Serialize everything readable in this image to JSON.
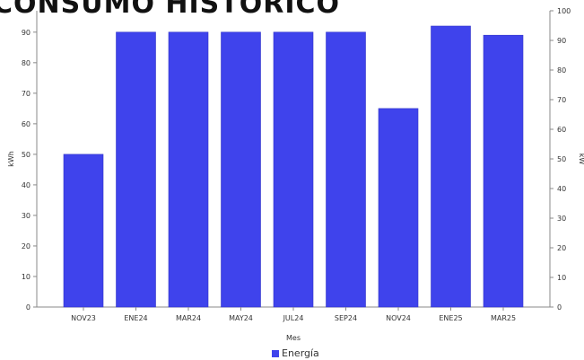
{
  "chart_data": {
    "type": "bar",
    "title": "CONSUMO HISTÓRICO",
    "xlabel": "Mes",
    "ylabel": "kWh",
    "ylabel_right": "kW",
    "categories": [
      "NOV23",
      "ENE24",
      "MAR24",
      "MAY24",
      "JUL24",
      "SEP24",
      "NOV24",
      "ENE25",
      "MAR25"
    ],
    "series": [
      {
        "name": "Energía",
        "values": [
          50,
          90,
          90,
          90,
          90,
          90,
          65,
          92,
          89
        ]
      }
    ],
    "ylim": [
      0,
      97
    ],
    "yticks": [
      "0",
      "10",
      "20",
      "30",
      "40",
      "50",
      "60",
      "70",
      "80",
      "90"
    ],
    "ylim_right": [
      0,
      100
    ],
    "yticks_right": [
      "0",
      "10",
      "20",
      "30",
      "40",
      "50",
      "60",
      "70",
      "80",
      "90",
      "100"
    ],
    "grid": false,
    "legend_position": "bottom",
    "colors": {
      "bar": "#3f43ec",
      "bar_edge": "#3236c8"
    }
  }
}
